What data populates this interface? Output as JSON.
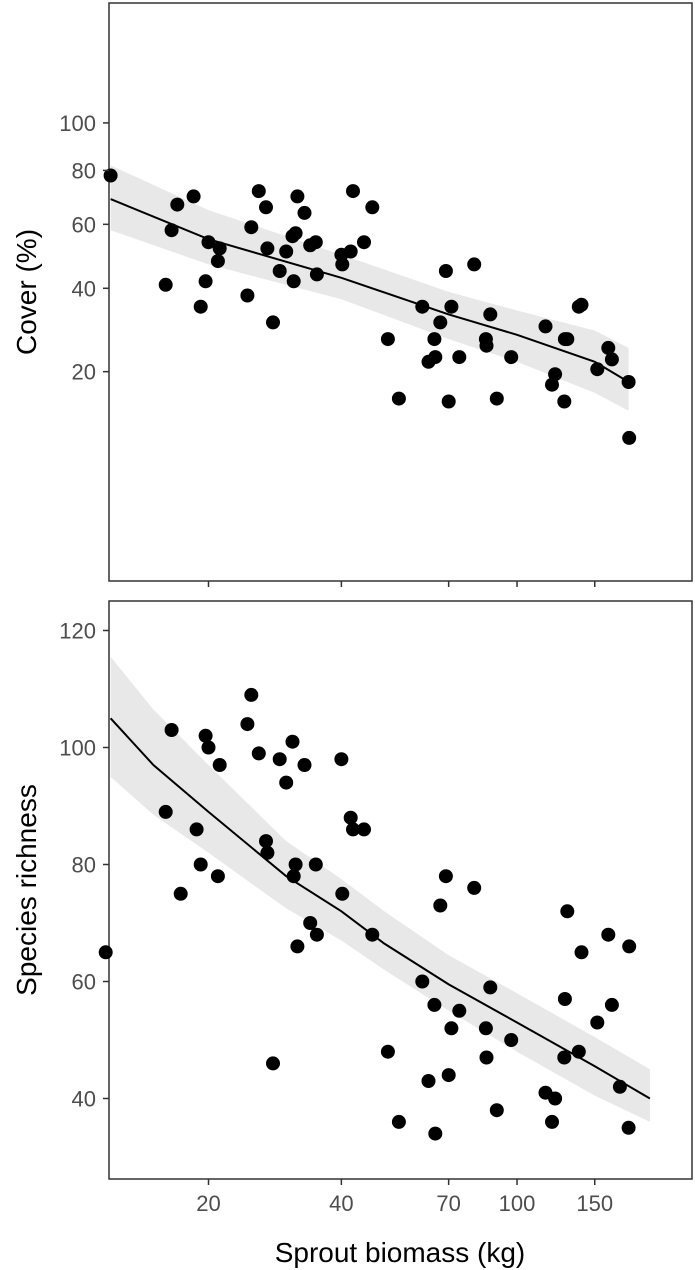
{
  "chart_data": [
    {
      "type": "scatter",
      "panel": "top",
      "ylabel": "Cover (%)",
      "x_scale": "log",
      "y_scale": "sqrt",
      "xlim": [
        10,
        200
      ],
      "ylim": [
        0,
        105
      ],
      "yticks": [
        20,
        40,
        60,
        80,
        100
      ],
      "x_tick_labels_shown": false,
      "grid": false,
      "colors": {
        "points": "#000000",
        "fit_line": "#000000",
        "ci_band": "#e8e8e8"
      },
      "points": [
        {
          "x": 12,
          "y": 78
        },
        {
          "x": 16,
          "y": 41
        },
        {
          "x": 16.5,
          "y": 58
        },
        {
          "x": 17,
          "y": 67
        },
        {
          "x": 18.5,
          "y": 70
        },
        {
          "x": 19.2,
          "y": 35
        },
        {
          "x": 19.7,
          "y": 42
        },
        {
          "x": 20,
          "y": 54
        },
        {
          "x": 21,
          "y": 48
        },
        {
          "x": 21.2,
          "y": 52
        },
        {
          "x": 24.5,
          "y": 38
        },
        {
          "x": 25,
          "y": 59
        },
        {
          "x": 26,
          "y": 72
        },
        {
          "x": 27,
          "y": 66
        },
        {
          "x": 27.2,
          "y": 52
        },
        {
          "x": 28,
          "y": 31
        },
        {
          "x": 29,
          "y": 45
        },
        {
          "x": 30,
          "y": 51
        },
        {
          "x": 31,
          "y": 56
        },
        {
          "x": 31.2,
          "y": 42
        },
        {
          "x": 31.5,
          "y": 57
        },
        {
          "x": 31.8,
          "y": 70
        },
        {
          "x": 33,
          "y": 64
        },
        {
          "x": 34,
          "y": 53
        },
        {
          "x": 35,
          "y": 54
        },
        {
          "x": 35.2,
          "y": 44
        },
        {
          "x": 40,
          "y": 50
        },
        {
          "x": 40.2,
          "y": 47
        },
        {
          "x": 42,
          "y": 51
        },
        {
          "x": 42.5,
          "y": 72
        },
        {
          "x": 45,
          "y": 54
        },
        {
          "x": 47,
          "y": 66
        },
        {
          "x": 51,
          "y": 27
        },
        {
          "x": 54,
          "y": 15
        },
        {
          "x": 61,
          "y": 35
        },
        {
          "x": 63,
          "y": 22
        },
        {
          "x": 65,
          "y": 27
        },
        {
          "x": 65.3,
          "y": 23
        },
        {
          "x": 67,
          "y": 31
        },
        {
          "x": 69,
          "y": 45
        },
        {
          "x": 70,
          "y": 14.5
        },
        {
          "x": 71,
          "y": 35
        },
        {
          "x": 74,
          "y": 23
        },
        {
          "x": 80,
          "y": 47
        },
        {
          "x": 85,
          "y": 27
        },
        {
          "x": 85.3,
          "y": 25.5
        },
        {
          "x": 87,
          "y": 33
        },
        {
          "x": 90,
          "y": 15
        },
        {
          "x": 97,
          "y": 23
        },
        {
          "x": 116,
          "y": 30
        },
        {
          "x": 120,
          "y": 17.5
        },
        {
          "x": 122,
          "y": 19.5
        },
        {
          "x": 128,
          "y": 14.5
        },
        {
          "x": 128.4,
          "y": 27
        },
        {
          "x": 130,
          "y": 27
        },
        {
          "x": 138,
          "y": 35
        },
        {
          "x": 140,
          "y": 35.5
        },
        {
          "x": 152,
          "y": 20.5
        },
        {
          "x": 161,
          "y": 25
        },
        {
          "x": 164,
          "y": 22.5
        },
        {
          "x": 179,
          "y": 18
        },
        {
          "x": 179.5,
          "y": 9
        }
      ],
      "fit": {
        "x": [
          12,
          20,
          40,
          70,
          100,
          150,
          179
        ],
        "y": [
          69,
          55,
          43,
          33,
          28,
          22,
          18
        ],
        "lower": [
          58,
          47,
          37,
          27,
          22,
          16,
          13
        ],
        "upper": [
          82,
          65,
          50,
          39,
          34,
          29,
          25
        ]
      }
    },
    {
      "type": "scatter",
      "panel": "bottom",
      "xlabel": "Sprout biomass (kg)",
      "ylabel": "Species richness",
      "x_scale": "log",
      "y_scale": "linear",
      "xlim": [
        10,
        200
      ],
      "ylim": [
        28,
        125
      ],
      "xticks": [
        20,
        40,
        70,
        100,
        150
      ],
      "yticks": [
        40,
        60,
        80,
        100,
        120
      ],
      "grid": false,
      "colors": {
        "points": "#000000",
        "fit_line": "#000000",
        "ci_band": "#e8e8e8"
      },
      "points": [
        {
          "x": 11.7,
          "y": 65
        },
        {
          "x": 16,
          "y": 89
        },
        {
          "x": 16.5,
          "y": 103
        },
        {
          "x": 17.3,
          "y": 75
        },
        {
          "x": 18.8,
          "y": 86
        },
        {
          "x": 19.2,
          "y": 80
        },
        {
          "x": 19.7,
          "y": 102
        },
        {
          "x": 20,
          "y": 100
        },
        {
          "x": 21,
          "y": 78
        },
        {
          "x": 21.2,
          "y": 97
        },
        {
          "x": 24.5,
          "y": 104
        },
        {
          "x": 25,
          "y": 109
        },
        {
          "x": 26,
          "y": 99
        },
        {
          "x": 27,
          "y": 84
        },
        {
          "x": 27.2,
          "y": 82
        },
        {
          "x": 28,
          "y": 46
        },
        {
          "x": 29,
          "y": 98
        },
        {
          "x": 30,
          "y": 94
        },
        {
          "x": 31,
          "y": 101
        },
        {
          "x": 31.2,
          "y": 78
        },
        {
          "x": 31.5,
          "y": 80
        },
        {
          "x": 31.8,
          "y": 66
        },
        {
          "x": 33,
          "y": 97
        },
        {
          "x": 34,
          "y": 70
        },
        {
          "x": 35,
          "y": 80
        },
        {
          "x": 35.2,
          "y": 68
        },
        {
          "x": 40,
          "y": 98
        },
        {
          "x": 40.2,
          "y": 75
        },
        {
          "x": 42,
          "y": 88
        },
        {
          "x": 42.5,
          "y": 86
        },
        {
          "x": 45,
          "y": 86
        },
        {
          "x": 47,
          "y": 68
        },
        {
          "x": 51,
          "y": 48
        },
        {
          "x": 54,
          "y": 36
        },
        {
          "x": 61,
          "y": 60
        },
        {
          "x": 63,
          "y": 43
        },
        {
          "x": 65,
          "y": 56
        },
        {
          "x": 65.3,
          "y": 34
        },
        {
          "x": 67,
          "y": 73
        },
        {
          "x": 69,
          "y": 78
        },
        {
          "x": 70,
          "y": 44
        },
        {
          "x": 71,
          "y": 52
        },
        {
          "x": 74,
          "y": 55
        },
        {
          "x": 80,
          "y": 76
        },
        {
          "x": 85,
          "y": 52
        },
        {
          "x": 85.3,
          "y": 47
        },
        {
          "x": 87,
          "y": 59
        },
        {
          "x": 90,
          "y": 38
        },
        {
          "x": 97,
          "y": 50
        },
        {
          "x": 116,
          "y": 41
        },
        {
          "x": 120,
          "y": 36
        },
        {
          "x": 122,
          "y": 40
        },
        {
          "x": 128,
          "y": 47
        },
        {
          "x": 128.4,
          "y": 57
        },
        {
          "x": 130,
          "y": 72
        },
        {
          "x": 138,
          "y": 48
        },
        {
          "x": 140,
          "y": 65
        },
        {
          "x": 152,
          "y": 53
        },
        {
          "x": 161,
          "y": 68
        },
        {
          "x": 164,
          "y": 56
        },
        {
          "x": 171,
          "y": 42
        },
        {
          "x": 179,
          "y": 35
        },
        {
          "x": 179.5,
          "y": 66
        }
      ],
      "fit": {
        "x": [
          12,
          15,
          20,
          30,
          40,
          50,
          70,
          100,
          150,
          200
        ],
        "y": [
          105,
          97,
          89,
          78,
          72,
          66.5,
          59.5,
          53,
          45.5,
          40
        ],
        "lower": [
          95,
          88.5,
          82,
          72.5,
          67,
          62,
          55,
          48,
          40.5,
          36
        ],
        "upper": [
          115.5,
          106.5,
          97,
          84,
          77.5,
          72,
          64.5,
          58,
          50.5,
          45
        ]
      }
    }
  ]
}
